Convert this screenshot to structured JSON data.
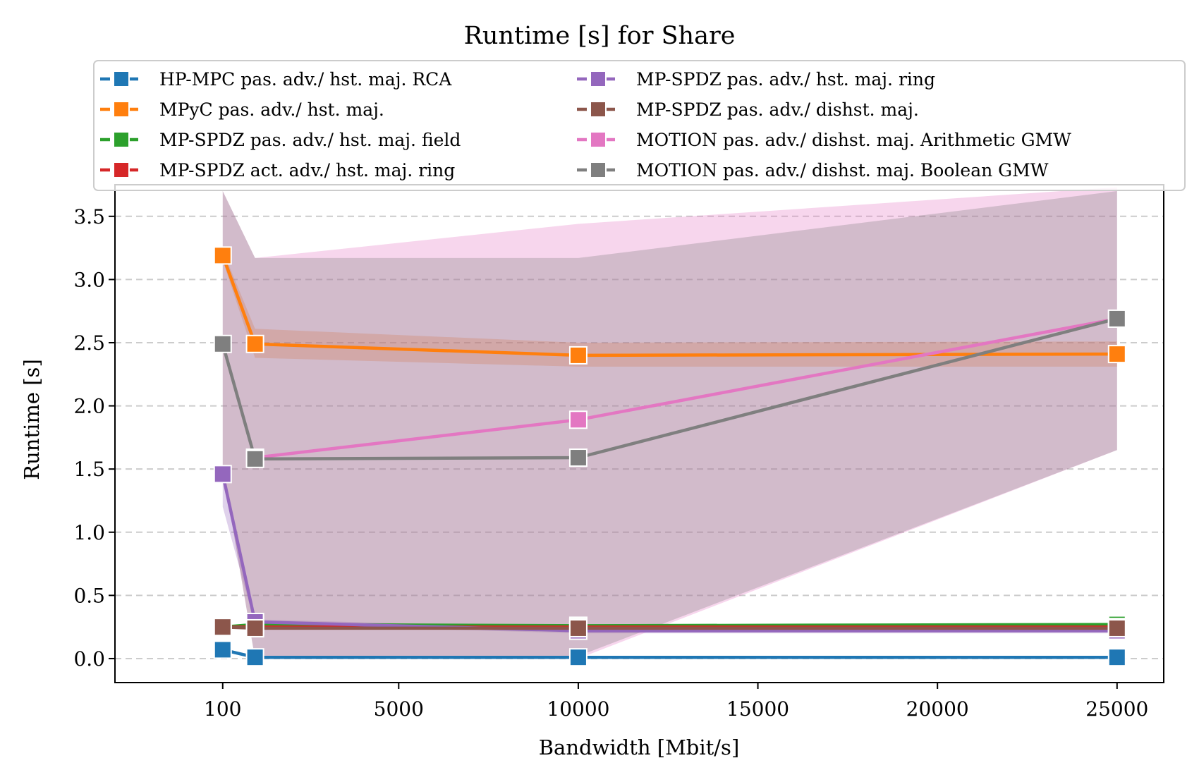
{
  "chart_data": {
    "type": "line",
    "title": "Runtime [s] for Share",
    "xlabel": "Bandwidth [Mbit/s]",
    "ylabel": "Runtime [s]",
    "xlim": [
      -2900,
      26300
    ],
    "ylim": [
      -0.19,
      3.75
    ],
    "xticks": [
      100,
      5000,
      10000,
      15000,
      20000,
      25000
    ],
    "yticks": [
      0.0,
      0.5,
      1.0,
      1.5,
      2.0,
      2.5,
      3.0,
      3.5
    ],
    "grid": "y-dashed",
    "legend_position": "top (2 columns, overlapping plot)",
    "x": [
      100,
      1000,
      10000,
      25000
    ],
    "series": [
      {
        "name": "HP-MPC pas. adv./ hst. maj. RCA",
        "color": "#1f77b4",
        "values": [
          0.07,
          0.01,
          0.01,
          0.01
        ]
      },
      {
        "name": "MPyC pas. adv./ hst. maj.",
        "color": "#ff7f0e",
        "values": [
          3.19,
          2.49,
          2.4,
          2.41
        ],
        "band_low": [
          3.15,
          2.38,
          2.31,
          2.31
        ],
        "band_high": [
          3.23,
          2.61,
          2.5,
          2.51
        ]
      },
      {
        "name": "MP-SPDZ pas. adv./ hst. maj. field",
        "color": "#2ca02c",
        "values": [
          0.25,
          0.27,
          0.26,
          0.27
        ]
      },
      {
        "name": "MP-SPDZ act. adv./ hst. maj. ring",
        "color": "#d62728",
        "values": [
          0.25,
          0.25,
          0.25,
          0.25
        ]
      },
      {
        "name": "MP-SPDZ pas. adv./ hst. maj. ring",
        "color": "#9467bd",
        "values": [
          1.46,
          0.29,
          0.22,
          0.22
        ],
        "band_low": [
          1.2,
          0.27,
          0.2,
          0.2
        ],
        "band_high": [
          1.5,
          0.31,
          0.24,
          0.24
        ]
      },
      {
        "name": "MP-SPDZ pas. adv./ dishst. maj.",
        "color": "#8c564b",
        "values": [
          0.25,
          0.24,
          0.24,
          0.24
        ]
      },
      {
        "name": "MOTION pas. adv./ dishst. maj. Arithmetic GMW",
        "color": "#e377c2",
        "values": [
          null,
          1.59,
          1.89,
          2.69
        ],
        "band_low": [
          1.5,
          0.0,
          0.0,
          1.65
        ],
        "band_high": [
          3.7,
          3.17,
          3.44,
          3.73
        ]
      },
      {
        "name": "MOTION pas. adv./ dishst. maj. Boolean GMW",
        "color": "#7f7f7f",
        "values": [
          2.49,
          1.58,
          1.59,
          2.69
        ],
        "band_low": [
          1.5,
          0.0,
          0.02,
          1.65
        ],
        "band_high": [
          3.7,
          3.17,
          3.17,
          3.7
        ]
      }
    ]
  }
}
